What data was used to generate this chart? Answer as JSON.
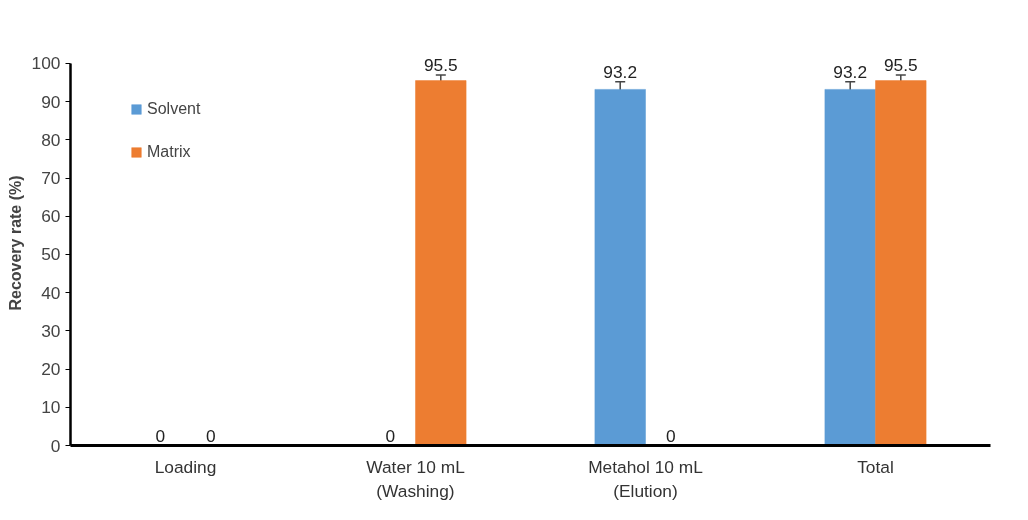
{
  "chart_data": {
    "type": "bar",
    "ylabel": "Recovery rate (%)",
    "categories": [
      "Loading",
      "Water 10 mL\n(Washing)",
      "Metahol 10 mL\n(Elution)",
      "Total"
    ],
    "series": [
      {
        "name": "Solvent",
        "color": "#5b9bd5",
        "values": [
          0,
          0,
          93.2,
          93.2
        ],
        "errors": [
          null,
          null,
          2,
          2
        ]
      },
      {
        "name": "Matrix",
        "color": "#ed7d31",
        "values": [
          0,
          95.5,
          0,
          95.5
        ],
        "errors": [
          null,
          1.5,
          null,
          1.5
        ]
      }
    ],
    "ylim": [
      0,
      100
    ],
    "yticks": [
      0,
      10,
      20,
      30,
      40,
      50,
      60,
      70,
      80,
      90,
      100
    ],
    "grid": false,
    "legend": "top left",
    "data_labels": true
  }
}
